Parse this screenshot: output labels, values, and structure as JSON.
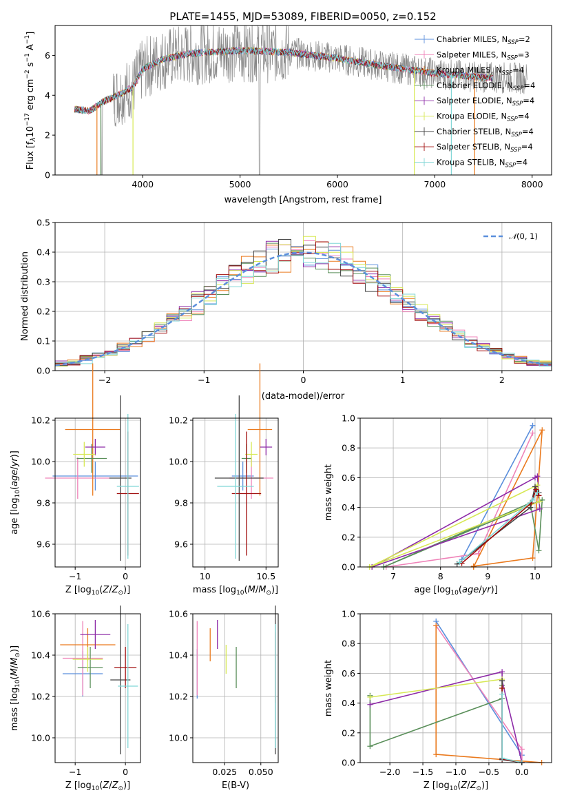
{
  "colors": [
    "#5b8fdc",
    "#ef83b9",
    "#ea7a1e",
    "#5a8f5a",
    "#8e2ca8",
    "#d7e855",
    "#444444",
    "#a00d0d",
    "#7fd6d6"
  ],
  "legend": [
    "Chabrier MILES, N$_{SSP}$=2",
    "Salpeter MILES, N$_{SSP}$=3",
    "Kroupa MILES, N$_{SSP}$=4",
    "Chabrier ELODIE, N$_{SSP}$=4",
    "Salpeter ELODIE, N$_{SSP}$=4",
    "Kroupa ELODIE, N$_{SSP}$=4",
    "Chabrier STELIB, N$_{SSP}$=4",
    "Salpeter STELIB, N$_{SSP}$=4",
    "Kroupa STELIB, N$_{SSP}$=4"
  ],
  "chart_data": [
    {
      "id": "spectrum",
      "type": "line",
      "title": "PLATE=1455, MJD=53089, FIBERID=0050, z=0.152",
      "xlabel": "wavelength [Angstrom, rest frame]",
      "ylabel": "Flux [f$_\\lambda$10$^{-17}$ erg cm$^{-2}$ s$^{-1}$ A$^{-1}$]",
      "xlim": [
        3100,
        8200
      ],
      "ylim": [
        0,
        7.5
      ],
      "xticks": [
        4000,
        5000,
        6000,
        7000,
        8000
      ],
      "yticks": [
        0,
        2,
        4,
        6
      ],
      "continuum": [
        [
          3300,
          3.3
        ],
        [
          3450,
          3.2
        ],
        [
          3600,
          3.7
        ],
        [
          3700,
          3.9
        ],
        [
          3900,
          4.4
        ],
        [
          4000,
          5.3
        ],
        [
          4200,
          5.8
        ],
        [
          4500,
          6.1
        ],
        [
          5000,
          6.25
        ],
        [
          5500,
          6.15
        ],
        [
          6000,
          5.85
        ],
        [
          6500,
          5.45
        ],
        [
          7000,
          5.1
        ],
        [
          7500,
          4.9
        ],
        [
          8000,
          4.85
        ]
      ],
      "grid": false,
      "legend_position": "upper right"
    },
    {
      "id": "residuals",
      "type": "histogram",
      "xlabel": "(data-model)/error",
      "ylabel": "Normed distribution",
      "xlim": [
        -2.5,
        2.5
      ],
      "ylim": [
        0,
        0.5
      ],
      "xticks": [
        -2,
        -1,
        0,
        1,
        2
      ],
      "yticks": [
        0.0,
        0.1,
        0.2,
        0.3,
        0.4,
        0.5
      ],
      "curve_label": "$\\mathcal{N}(0,1)$",
      "bins": 40,
      "grid": true
    },
    {
      "id": "age_vs_Z",
      "type": "errorbar",
      "xlabel": "Z [log$_{10}$(Z/Z$_\\odot$)]",
      "ylabel": "age  [log$_{10}$(age/yr)]",
      "xlim": [
        -1.4,
        0.3
      ],
      "ylim": [
        9.49,
        10.21
      ],
      "xticks": [
        -1,
        0
      ],
      "yticks": [
        9.6,
        9.8,
        10.0,
        10.2
      ],
      "points": [
        {
          "x": -0.6,
          "xerr": 0.85,
          "y": 9.93,
          "yerr": 0.07
        },
        {
          "x": -0.95,
          "xerr": 0.65,
          "y": 9.92,
          "yerr": 0.1
        },
        {
          "x": -0.65,
          "xerr": 0.55,
          "y": 10.155,
          "yerr": 0.32
        },
        {
          "x": -0.67,
          "xerr": 0.3,
          "y": 10.015,
          "yerr": 0.07
        },
        {
          "x": -0.6,
          "xerr": 0.2,
          "y": 10.07,
          "yerr": 0.04
        },
        {
          "x": -0.82,
          "xerr": 0.22,
          "y": 10.035,
          "yerr": 0.06
        },
        {
          "x": -0.1,
          "xerr": 0.22,
          "y": 9.92,
          "yerr": 0.4
        },
        {
          "x": 0.05,
          "xerr": 0.22,
          "y": 9.845,
          "yerr": 0.3
        },
        {
          "x": 0.05,
          "xerr": 0.22,
          "y": 9.88,
          "yerr": 0.35
        }
      ]
    },
    {
      "id": "age_vs_mass",
      "type": "errorbar",
      "xlabel": "mass [log$_{10}$(M/M$_\\odot$)]",
      "ylabel": "",
      "xlim": [
        9.9,
        10.6
      ],
      "ylim": [
        9.49,
        10.21
      ],
      "xticks": [
        10,
        10.5
      ],
      "yticks": [
        9.6,
        9.8,
        10.0,
        10.2
      ],
      "points": [
        {
          "x": 10.31,
          "xerr": 0.09,
          "y": 9.93,
          "yerr": 0.07
        },
        {
          "x": 10.38,
          "xerr": 0.18,
          "y": 9.92,
          "yerr": 0.1
        },
        {
          "x": 10.45,
          "xerr": 0.1,
          "y": 10.155,
          "yerr": 0.32
        },
        {
          "x": 10.34,
          "xerr": 0.04,
          "y": 10.015,
          "yerr": 0.07
        },
        {
          "x": 10.5,
          "xerr": 0.05,
          "y": 10.07,
          "yerr": 0.04
        },
        {
          "x": 10.38,
          "xerr": 0.05,
          "y": 10.035,
          "yerr": 0.06
        },
        {
          "x": 10.28,
          "xerr": 0.2,
          "y": 9.92,
          "yerr": 0.4
        },
        {
          "x": 10.34,
          "xerr": 0.12,
          "y": 9.845,
          "yerr": 0.3
        },
        {
          "x": 10.25,
          "xerr": 0.15,
          "y": 9.88,
          "yerr": 0.35
        }
      ]
    },
    {
      "id": "weight_vs_age",
      "type": "line",
      "xlabel": "age  [log$_{10}$(age/yr)]",
      "ylabel": "mass weight",
      "xlim": [
        6.3,
        10.35
      ],
      "ylim": [
        0,
        1.0
      ],
      "xticks": [
        7,
        8,
        9,
        10
      ],
      "yticks": [
        0.0,
        0.2,
        0.4,
        0.6,
        0.8,
        1.0
      ],
      "grid": true,
      "series": [
        {
          "x": [
            8.45,
            9.95
          ],
          "y": [
            0.05,
            0.95
          ]
        },
        {
          "x": [
            6.85,
            8.8,
            9.95
          ],
          "y": [
            0.0,
            0.09,
            0.9
          ]
        },
        {
          "x": [
            8.7,
            9.95,
            10.15,
            8.7
          ],
          "y": [
            0.005,
            0.06,
            0.92,
            0.0
          ]
        },
        {
          "x": [
            6.8,
            9.9,
            10.08,
            10.15,
            6.8
          ],
          "y": [
            0.0,
            0.43,
            0.11,
            0.45,
            0.0
          ]
        },
        {
          "x": [
            6.55,
            10.0,
            10.05,
            10.1,
            6.55
          ],
          "y": [
            0.0,
            0.6,
            0.61,
            0.39,
            0.0
          ]
        },
        {
          "x": [
            6.5,
            10.05,
            10.1,
            6.5
          ],
          "y": [
            0.0,
            0.55,
            0.44,
            0.0
          ]
        },
        {
          "x": [
            8.35,
            9.9,
            10.0,
            10.08
          ],
          "y": [
            0.02,
            0.4,
            0.54,
            0.5
          ]
        },
        {
          "x": [
            8.45,
            9.92,
            10.02,
            10.08
          ],
          "y": [
            0.025,
            0.43,
            0.52,
            0.48
          ]
        },
        {
          "x": [
            8.4,
            9.95,
            10.05
          ],
          "y": [
            0.03,
            0.45,
            0.5
          ]
        }
      ]
    },
    {
      "id": "mass_vs_Z",
      "type": "errorbar",
      "xlabel": "Z [log$_{10}$(Z/Z$_\\odot$)]",
      "ylabel": "mass [log$_{10}$(M/M$_\\odot$)]",
      "xlim": [
        -1.4,
        0.3
      ],
      "ylim": [
        9.88,
        10.6
      ],
      "xticks": [
        -1,
        0
      ],
      "yticks": [
        10.0,
        10.2,
        10.4,
        10.6
      ],
      "points": [
        {
          "x": -0.85,
          "xerr": 0.4,
          "y": 10.31,
          "yerr": 0.11
        },
        {
          "x": -0.85,
          "xerr": 0.4,
          "y": 10.385,
          "yerr": 0.18
        },
        {
          "x": -0.75,
          "xerr": 0.55,
          "y": 10.45,
          "yerr": 0.08
        },
        {
          "x": -0.7,
          "xerr": 0.25,
          "y": 10.34,
          "yerr": 0.1
        },
        {
          "x": -0.6,
          "xerr": 0.3,
          "y": 10.5,
          "yerr": 0.07
        },
        {
          "x": -0.75,
          "xerr": 0.3,
          "y": 10.38,
          "yerr": 0.06
        },
        {
          "x": -0.1,
          "xerr": 0.2,
          "y": 10.28,
          "yerr": 0.36
        },
        {
          "x": 0.0,
          "xerr": 0.22,
          "y": 10.34,
          "yerr": 0.1
        },
        {
          "x": 0.05,
          "xerr": 0.2,
          "y": 10.25,
          "yerr": 0.3
        }
      ]
    },
    {
      "id": "mass_vs_ebv",
      "type": "errorbar",
      "xlabel": "E(B-V)",
      "ylabel": "",
      "xlim": [
        0.003,
        0.062
      ],
      "ylim": [
        9.88,
        10.6
      ],
      "xticks": [
        0.025,
        0.05
      ],
      "yticks": [
        10.0,
        10.2,
        10.4,
        10.6
      ],
      "points": [
        {
          "x": 0.006,
          "xerr": 0,
          "y": 10.31,
          "yerr": 0.12
        },
        {
          "x": 0.006,
          "xerr": 0,
          "y": 10.385,
          "yerr": 0.18
        },
        {
          "x": 0.015,
          "xerr": 0,
          "y": 10.45,
          "yerr": 0.08
        },
        {
          "x": 0.033,
          "xerr": 0,
          "y": 10.34,
          "yerr": 0.1
        },
        {
          "x": 0.02,
          "xerr": 0,
          "y": 10.5,
          "yerr": 0.07
        },
        {
          "x": 0.026,
          "xerr": 0,
          "y": 10.38,
          "yerr": 0.07
        },
        {
          "x": 0.06,
          "xerr": 0,
          "y": 10.28,
          "yerr": 0.36
        },
        {
          "x": 0.06,
          "xerr": 0,
          "y": 10.34,
          "yerr": 0.17
        },
        {
          "x": 0.06,
          "xerr": 0,
          "y": 10.25,
          "yerr": 0.3
        }
      ]
    },
    {
      "id": "weight_vs_Z",
      "type": "line",
      "xlabel": "Z [log$_{10}$(Z/Z$_\\odot$)]",
      "ylabel": "mass weight",
      "xlim": [
        -2.45,
        0.45
      ],
      "ylim": [
        0,
        1.0
      ],
      "xticks": [
        -2.0,
        -1.5,
        -1.0,
        -0.5,
        0.0
      ],
      "yticks": [
        0.0,
        0.2,
        0.4,
        0.6,
        0.8,
        1.0
      ],
      "grid": true,
      "series": [
        {
          "x": [
            -1.3,
            0.0
          ],
          "y": [
            0.95,
            0.05
          ]
        },
        {
          "x": [
            -1.3,
            0.0,
            0.0
          ],
          "y": [
            0.92,
            0.09,
            0.0
          ]
        },
        {
          "x": [
            -1.3,
            -1.3,
            0.3
          ],
          "y": [
            0.92,
            0.055,
            0.0
          ]
        },
        {
          "x": [
            -2.3,
            -2.3,
            -0.3,
            -0.3
          ],
          "y": [
            0.45,
            0.11,
            0.43,
            0.52
          ]
        },
        {
          "x": [
            -2.3,
            -0.3,
            -0.3,
            0.0
          ],
          "y": [
            0.39,
            0.61,
            0.55,
            0.0
          ]
        },
        {
          "x": [
            -2.3,
            -0.3,
            -0.3
          ],
          "y": [
            0.44,
            0.56,
            0.5
          ]
        },
        {
          "x": [
            -0.3,
            -0.3,
            0.0
          ],
          "y": [
            0.55,
            0.02,
            0.0
          ]
        },
        {
          "x": [
            -0.3,
            -0.3,
            0.0
          ],
          "y": [
            0.5,
            0.025,
            0.0
          ]
        },
        {
          "x": [
            -0.3,
            -0.3,
            0.0
          ],
          "y": [
            0.46,
            0.03,
            0.0
          ]
        }
      ]
    }
  ]
}
